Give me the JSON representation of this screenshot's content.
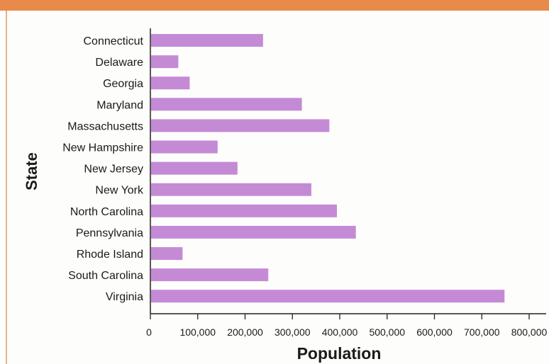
{
  "chart_data": {
    "type": "bar",
    "orientation": "horizontal",
    "title": "",
    "xlabel": "Population",
    "ylabel": "State",
    "categories": [
      "Connecticut",
      "Delaware",
      "Georgia",
      "Maryland",
      "Massachusetts",
      "New Hampshire",
      "New Jersey",
      "New York",
      "North Carolina",
      "Pennsylvania",
      "Rhode Island",
      "South Carolina",
      "Virginia"
    ],
    "values": [
      238000,
      59000,
      83000,
      320000,
      378000,
      142000,
      184000,
      340000,
      394000,
      434000,
      68000,
      249000,
      748000
    ],
    "xlim": [
      0,
      800000
    ],
    "xticks": [
      0,
      100000,
      200000,
      300000,
      400000,
      500000,
      600000,
      700000,
      800000
    ],
    "xtick_labels": [
      "0",
      "100,000",
      "200,000",
      "300,000",
      "400,000",
      "500,000",
      "600,000",
      "700,000",
      "800,000"
    ],
    "bar_color": "#c58ad6",
    "grid": false,
    "legend": "none"
  },
  "colors": {
    "header_band": "#e78a4a",
    "axis": "#222222",
    "text": "#1a1a1a"
  }
}
